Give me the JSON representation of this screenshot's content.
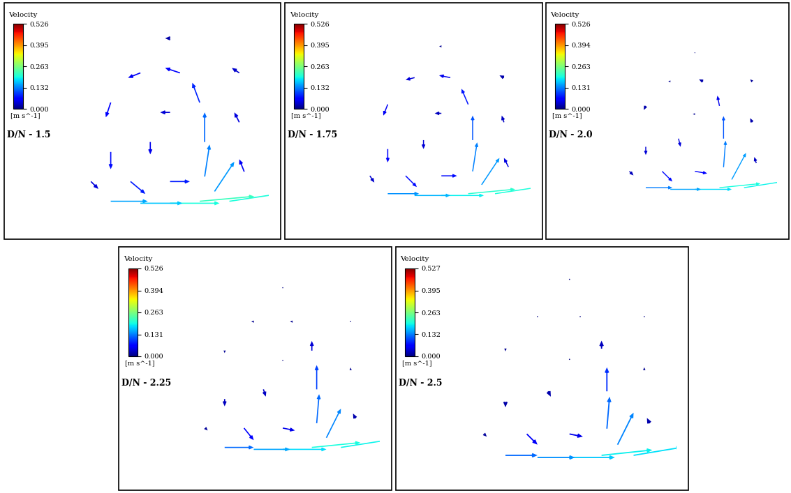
{
  "chart_data": [
    {
      "type": "quiver",
      "title": "D/N - 1.5",
      "tick_labels": false,
      "xlim": [
        -1,
        1
      ],
      "ylim": [
        -1,
        1
      ],
      "colorbar": {
        "title": "Velocity",
        "label": "[m s^-1]",
        "range": [
          0,
          0.526
        ],
        "ticks": [
          {
            "value": 0,
            "label": "0.000"
          },
          0.132,
          0.263,
          0.395,
          0.526
        ]
      },
      "x": [
        -0.6,
        0.0,
        0.6,
        0.35,
        0.35,
        0.3,
        0.1,
        -0.3,
        -0.6,
        -0.6,
        -0.4,
        0.0,
        -0.2,
        0.0,
        0.7,
        0.7,
        0.0,
        -0.8,
        0.75,
        0.3,
        -0.3,
        0.45
      ],
      "y": [
        -0.8,
        -0.82,
        -0.8,
        -0.55,
        -0.2,
        0.2,
        0.5,
        0.5,
        0.2,
        -0.3,
        -0.6,
        -0.6,
        -0.2,
        0.1,
        0.0,
        0.5,
        0.85,
        -0.6,
        -0.5,
        -0.8,
        -0.82,
        -0.7
      ],
      "u": [
        0.15,
        0.2,
        0.2,
        0.02,
        0.0,
        -0.03,
        -0.06,
        -0.05,
        -0.02,
        0.0,
        0.06,
        0.08,
        0.0,
        -0.04,
        -0.02,
        -0.03,
        -0.02,
        0.03,
        -0.02,
        0.22,
        0.17,
        0.08
      ],
      "v": [
        0.0,
        0.0,
        0.03,
        0.13,
        0.12,
        0.08,
        0.02,
        -0.02,
        -0.06,
        -0.07,
        -0.05,
        0.0,
        -0.05,
        0.0,
        0.04,
        0.02,
        0.0,
        -0.03,
        0.05,
        0.02,
        0.0,
        0.12
      ]
    },
    {
      "type": "quiver",
      "title": "D/N - 1.75",
      "tick_labels": false,
      "xlim": [
        -1,
        1
      ],
      "ylim": [
        -1,
        1
      ],
      "colorbar": {
        "title": "Velocity",
        "label": "[m s^-1]",
        "range": [
          0,
          0.526
        ],
        "ticks": [
          {
            "value": 0,
            "label": "0.000"
          },
          0.132,
          0.263,
          0.395,
          0.526
        ]
      },
      "x": [
        -0.6,
        0.0,
        0.6,
        0.35,
        0.35,
        0.3,
        0.1,
        -0.3,
        -0.6,
        -0.6,
        -0.4,
        0.0,
        -0.2,
        0.0,
        0.7,
        0.7,
        0.0,
        -0.8,
        0.75,
        0.3,
        -0.3,
        0.45
      ],
      "y": [
        -0.8,
        -0.82,
        -0.8,
        -0.55,
        -0.2,
        0.2,
        0.5,
        0.5,
        0.2,
        -0.3,
        -0.6,
        -0.6,
        -0.2,
        0.1,
        0.0,
        0.5,
        0.85,
        -0.6,
        -0.5,
        -0.8,
        -0.82,
        -0.7
      ],
      "u": [
        0.14,
        0.19,
        0.2,
        0.02,
        0.0,
        -0.03,
        -0.05,
        -0.04,
        -0.02,
        0.0,
        0.05,
        0.07,
        0.0,
        -0.03,
        -0.01,
        -0.02,
        -0.01,
        0.02,
        -0.02,
        0.21,
        0.16,
        0.08
      ],
      "v": [
        0.0,
        0.0,
        0.03,
        0.13,
        0.11,
        0.07,
        0.01,
        -0.01,
        -0.05,
        -0.06,
        -0.05,
        0.0,
        -0.04,
        0.0,
        0.03,
        0.01,
        0.0,
        -0.03,
        0.04,
        0.02,
        0.0,
        0.12
      ]
    },
    {
      "type": "quiver",
      "title": "D/N - 2.0",
      "tick_labels": false,
      "xlim": [
        -1,
        1
      ],
      "ylim": [
        -1,
        1
      ],
      "colorbar": {
        "title": "Velocity",
        "label": "[m s^-1]",
        "range": [
          0,
          0.526
        ],
        "ticks": [
          {
            "value": 0,
            "label": "0.000"
          },
          0.131,
          0.263,
          0.394,
          0.526
        ]
      },
      "x": [
        -0.6,
        0.0,
        0.6,
        0.35,
        0.35,
        0.3,
        0.1,
        -0.3,
        -0.6,
        -0.6,
        -0.4,
        0.0,
        -0.2,
        0.0,
        0.7,
        0.7,
        0.0,
        -0.8,
        0.75,
        0.3,
        -0.3,
        0.45
      ],
      "y": [
        -0.8,
        -0.82,
        -0.8,
        -0.55,
        -0.2,
        0.2,
        0.5,
        0.5,
        0.2,
        -0.3,
        -0.6,
        -0.6,
        -0.2,
        0.1,
        0.0,
        0.5,
        0.85,
        -0.6,
        -0.5,
        -0.8,
        -0.82,
        -0.7
      ],
      "u": [
        0.13,
        0.18,
        0.19,
        0.01,
        0.0,
        -0.01,
        -0.02,
        -0.01,
        -0.01,
        0.0,
        0.05,
        0.06,
        0.01,
        -0.01,
        -0.01,
        -0.01,
        0.0,
        0.02,
        -0.01,
        0.2,
        0.15,
        0.07
      ],
      "v": [
        0.0,
        0.0,
        0.03,
        0.13,
        0.11,
        0.05,
        0.01,
        0.0,
        -0.02,
        -0.04,
        -0.05,
        -0.01,
        -0.04,
        0.0,
        0.02,
        0.01,
        0.0,
        -0.02,
        0.03,
        0.02,
        0.0,
        0.13
      ]
    },
    {
      "type": "quiver",
      "title": "D/N - 2.25",
      "tick_labels": false,
      "xlim": [
        -1,
        1
      ],
      "ylim": [
        -1,
        1
      ],
      "colorbar": {
        "title": "Velocity",
        "label": "[m s^-1]",
        "range": [
          0,
          0.526
        ],
        "ticks": [
          {
            "value": 0,
            "label": "0.000"
          },
          0.131,
          0.263,
          0.394,
          0.526
        ]
      },
      "x": [
        -0.6,
        0.0,
        0.6,
        0.35,
        0.35,
        0.3,
        0.1,
        -0.3,
        -0.6,
        -0.6,
        -0.4,
        0.0,
        -0.2,
        0.0,
        0.7,
        0.7,
        0.0,
        -0.8,
        0.75,
        0.3,
        -0.3,
        0.45
      ],
      "y": [
        -0.8,
        -0.82,
        -0.8,
        -0.55,
        -0.2,
        0.2,
        0.5,
        0.5,
        0.2,
        -0.3,
        -0.6,
        -0.6,
        -0.2,
        0.1,
        0.0,
        0.5,
        0.85,
        -0.6,
        -0.5,
        -0.8,
        -0.82,
        -0.7
      ],
      "u": [
        0.12,
        0.18,
        0.19,
        0.01,
        0.0,
        0.0,
        -0.01,
        -0.01,
        0.0,
        0.0,
        0.04,
        0.05,
        0.01,
        0.0,
        0.0,
        0.0,
        0.0,
        0.01,
        -0.01,
        0.2,
        0.15,
        0.06
      ],
      "v": [
        0.0,
        0.0,
        0.03,
        0.12,
        0.1,
        0.04,
        0.0,
        0.0,
        -0.01,
        -0.03,
        -0.05,
        -0.01,
        -0.03,
        0.0,
        0.01,
        0.0,
        0.0,
        -0.01,
        0.02,
        0.02,
        0.0,
        0.12
      ]
    },
    {
      "type": "quiver",
      "title": "D/N - 2.5",
      "tick_labels": false,
      "xlim": [
        -1,
        1
      ],
      "ylim": [
        -1,
        1
      ],
      "colorbar": {
        "title": "Velocity",
        "label": "[m s^-1]",
        "range": [
          0,
          0.527
        ],
        "ticks": [
          {
            "value": 0,
            "label": "0.000"
          },
          0.132,
          0.263,
          0.395,
          0.527
        ]
      },
      "x": [
        -0.6,
        0.0,
        0.6,
        0.35,
        0.35,
        0.3,
        0.1,
        -0.3,
        -0.6,
        -0.6,
        -0.4,
        0.0,
        -0.2,
        0.0,
        0.7,
        0.7,
        0.0,
        -0.8,
        0.75,
        0.3,
        -0.3,
        0.45
      ],
      "y": [
        -0.8,
        -0.82,
        -0.8,
        -0.55,
        -0.2,
        0.2,
        0.5,
        0.5,
        0.2,
        -0.3,
        -0.6,
        -0.6,
        -0.2,
        0.1,
        0.0,
        0.5,
        0.85,
        -0.6,
        -0.5,
        -0.8,
        -0.82,
        -0.7
      ],
      "u": [
        0.12,
        0.17,
        0.18,
        0.01,
        0.0,
        0.0,
        0.0,
        0.0,
        0.0,
        0.0,
        0.04,
        0.05,
        0.01,
        0.0,
        0.0,
        0.0,
        0.0,
        0.01,
        -0.01,
        0.19,
        0.14,
        0.06
      ],
      "v": [
        0.0,
        0.0,
        0.03,
        0.12,
        0.09,
        0.03,
        0.0,
        0.0,
        -0.01,
        -0.02,
        -0.04,
        -0.01,
        -0.02,
        0.0,
        0.01,
        0.0,
        0.0,
        -0.01,
        0.02,
        0.02,
        0.0,
        0.12
      ]
    }
  ]
}
